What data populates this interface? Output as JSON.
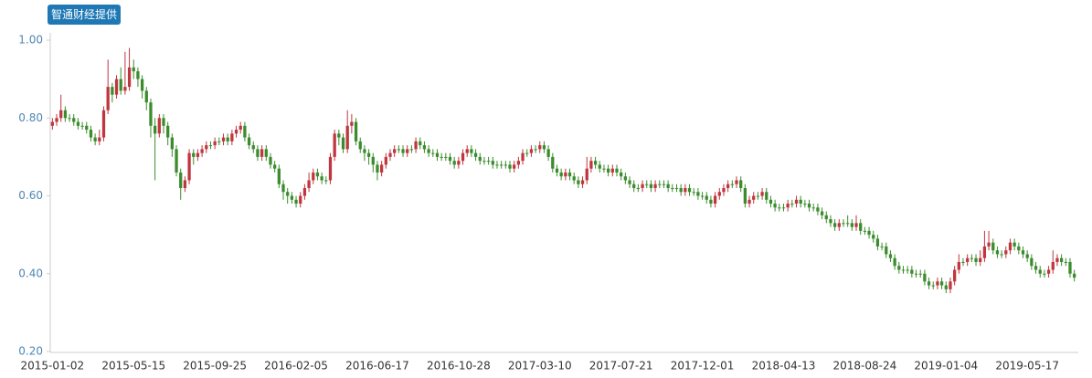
{
  "source_badge": "智通财经提供",
  "chart_data": {
    "type": "candlestick",
    "categories": [
      "2015-01-02",
      null,
      null,
      null,
      null,
      null,
      null,
      null,
      null,
      null,
      null,
      null,
      null,
      null,
      null,
      null,
      null,
      null,
      null,
      "2015-05-15",
      null,
      null,
      null,
      null,
      null,
      null,
      null,
      null,
      null,
      null,
      null,
      null,
      null,
      null,
      null,
      null,
      null,
      null,
      "2015-09-25",
      null,
      null,
      null,
      null,
      null,
      null,
      null,
      null,
      null,
      null,
      null,
      null,
      null,
      null,
      null,
      null,
      null,
      null,
      "2016-02-05",
      null,
      null,
      null,
      null,
      null,
      null,
      null,
      null,
      null,
      null,
      null,
      null,
      null,
      null,
      null,
      null,
      null,
      null,
      "2016-06-17",
      null,
      null,
      null,
      null,
      null,
      null,
      null,
      null,
      null,
      null,
      null,
      null,
      null,
      null,
      null,
      null,
      null,
      null,
      "2016-10-28",
      null,
      null,
      null,
      null,
      null,
      null,
      null,
      null,
      null,
      null,
      null,
      null,
      null,
      null,
      null,
      null,
      null,
      null,
      "2017-03-10",
      null,
      null,
      null,
      null,
      null,
      null,
      null,
      null,
      null,
      null,
      null,
      null,
      null,
      null,
      null,
      null,
      null,
      null,
      "2017-07-21",
      null,
      null,
      null,
      null,
      null,
      null,
      null,
      null,
      null,
      null,
      null,
      null,
      null,
      null,
      null,
      null,
      null,
      null,
      "2017-12-01",
      null,
      null,
      null,
      null,
      null,
      null,
      null,
      null,
      null,
      null,
      null,
      null,
      null,
      null,
      null,
      null,
      null,
      null,
      "2018-04-13",
      null,
      null,
      null,
      null,
      null,
      null,
      null,
      null,
      null,
      null,
      null,
      null,
      null,
      null,
      null,
      null,
      null,
      null,
      "2018-08-24",
      null,
      null,
      null,
      null,
      null,
      null,
      null,
      null,
      null,
      null,
      null,
      null,
      null,
      null,
      null,
      null,
      null,
      null,
      "2019-01-04",
      null,
      null,
      null,
      null,
      null,
      null,
      null,
      null,
      null,
      null,
      null,
      null,
      null,
      null,
      null,
      null,
      null,
      null,
      "2019-05-17",
      null,
      null,
      null,
      null,
      null,
      null,
      null,
      null,
      null,
      null,
      null
    ],
    "open": [
      0.78,
      0.79,
      0.8,
      0.82,
      0.8,
      0.8,
      0.79,
      0.78,
      0.78,
      0.77,
      0.75,
      0.74,
      0.75,
      0.82,
      0.88,
      0.86,
      0.9,
      0.87,
      0.88,
      0.93,
      0.92,
      0.9,
      0.87,
      0.84,
      0.78,
      0.76,
      0.8,
      0.78,
      0.75,
      0.72,
      0.66,
      0.62,
      0.64,
      0.71,
      0.7,
      0.71,
      0.72,
      0.73,
      0.73,
      0.74,
      0.74,
      0.75,
      0.74,
      0.76,
      0.77,
      0.78,
      0.75,
      0.73,
      0.72,
      0.7,
      0.72,
      0.7,
      0.68,
      0.67,
      0.63,
      0.61,
      0.6,
      0.59,
      0.58,
      0.6,
      0.62,
      0.64,
      0.66,
      0.65,
      0.64,
      0.64,
      0.7,
      0.76,
      0.75,
      0.72,
      0.78,
      0.79,
      0.74,
      0.72,
      0.71,
      0.7,
      0.68,
      0.66,
      0.68,
      0.7,
      0.71,
      0.72,
      0.72,
      0.71,
      0.72,
      0.72,
      0.74,
      0.73,
      0.72,
      0.71,
      0.71,
      0.7,
      0.7,
      0.7,
      0.69,
      0.68,
      0.69,
      0.71,
      0.72,
      0.71,
      0.7,
      0.69,
      0.69,
      0.69,
      0.68,
      0.68,
      0.68,
      0.68,
      0.67,
      0.68,
      0.69,
      0.71,
      0.71,
      0.72,
      0.72,
      0.73,
      0.72,
      0.7,
      0.67,
      0.66,
      0.65,
      0.66,
      0.65,
      0.64,
      0.63,
      0.64,
      0.67,
      0.69,
      0.68,
      0.67,
      0.67,
      0.66,
      0.67,
      0.66,
      0.65,
      0.64,
      0.63,
      0.62,
      0.62,
      0.63,
      0.63,
      0.62,
      0.63,
      0.63,
      0.63,
      0.62,
      0.62,
      0.62,
      0.61,
      0.62,
      0.61,
      0.61,
      0.6,
      0.6,
      0.59,
      0.58,
      0.6,
      0.61,
      0.62,
      0.63,
      0.63,
      0.64,
      0.62,
      0.58,
      0.59,
      0.6,
      0.6,
      0.61,
      0.59,
      0.58,
      0.57,
      0.57,
      0.57,
      0.58,
      0.58,
      0.59,
      0.58,
      0.58,
      0.57,
      0.57,
      0.56,
      0.55,
      0.54,
      0.53,
      0.52,
      0.53,
      0.53,
      0.53,
      0.52,
      0.53,
      0.51,
      0.51,
      0.5,
      0.49,
      0.47,
      0.47,
      0.45,
      0.44,
      0.42,
      0.41,
      0.41,
      0.41,
      0.4,
      0.4,
      0.4,
      0.38,
      0.37,
      0.37,
      0.38,
      0.37,
      0.36,
      0.38,
      0.41,
      0.43,
      0.43,
      0.44,
      0.44,
      0.43,
      0.44,
      0.47,
      0.48,
      0.46,
      0.45,
      0.45,
      0.46,
      0.48,
      0.47,
      0.46,
      0.45,
      0.44,
      0.42,
      0.41,
      0.4,
      0.4,
      0.41,
      0.43,
      0.44,
      0.43,
      0.43,
      0.4
    ],
    "high": [
      0.8,
      0.81,
      0.86,
      0.83,
      0.81,
      0.81,
      0.8,
      0.79,
      0.79,
      0.78,
      0.76,
      0.77,
      0.83,
      0.95,
      0.89,
      0.91,
      0.93,
      0.97,
      0.98,
      0.95,
      0.93,
      0.91,
      0.88,
      0.85,
      0.8,
      0.81,
      0.81,
      0.79,
      0.76,
      0.73,
      0.67,
      0.65,
      0.72,
      0.72,
      0.72,
      0.73,
      0.74,
      0.74,
      0.75,
      0.75,
      0.76,
      0.76,
      0.77,
      0.78,
      0.79,
      0.79,
      0.76,
      0.74,
      0.73,
      0.73,
      0.73,
      0.71,
      0.69,
      0.68,
      0.64,
      0.62,
      0.61,
      0.6,
      0.61,
      0.63,
      0.66,
      0.67,
      0.67,
      0.66,
      0.65,
      0.71,
      0.77,
      0.77,
      0.76,
      0.82,
      0.81,
      0.8,
      0.75,
      0.73,
      0.72,
      0.71,
      0.69,
      0.69,
      0.71,
      0.72,
      0.73,
      0.73,
      0.73,
      0.73,
      0.73,
      0.75,
      0.75,
      0.74,
      0.73,
      0.72,
      0.72,
      0.71,
      0.71,
      0.71,
      0.7,
      0.7,
      0.72,
      0.73,
      0.73,
      0.72,
      0.71,
      0.7,
      0.7,
      0.7,
      0.69,
      0.69,
      0.69,
      0.69,
      0.69,
      0.7,
      0.72,
      0.72,
      0.73,
      0.73,
      0.74,
      0.74,
      0.73,
      0.71,
      0.68,
      0.67,
      0.67,
      0.67,
      0.66,
      0.65,
      0.65,
      0.7,
      0.7,
      0.7,
      0.69,
      0.68,
      0.68,
      0.68,
      0.68,
      0.67,
      0.66,
      0.65,
      0.64,
      0.63,
      0.64,
      0.64,
      0.64,
      0.64,
      0.64,
      0.64,
      0.64,
      0.63,
      0.63,
      0.63,
      0.63,
      0.63,
      0.62,
      0.62,
      0.61,
      0.61,
      0.6,
      0.61,
      0.62,
      0.63,
      0.64,
      0.64,
      0.65,
      0.65,
      0.63,
      0.6,
      0.61,
      0.61,
      0.62,
      0.62,
      0.6,
      0.59,
      0.58,
      0.58,
      0.59,
      0.59,
      0.6,
      0.6,
      0.59,
      0.59,
      0.58,
      0.58,
      0.57,
      0.56,
      0.55,
      0.54,
      0.54,
      0.54,
      0.55,
      0.54,
      0.55,
      0.54,
      0.52,
      0.52,
      0.51,
      0.5,
      0.48,
      0.48,
      0.46,
      0.45,
      0.43,
      0.42,
      0.42,
      0.42,
      0.41,
      0.41,
      0.41,
      0.39,
      0.38,
      0.39,
      0.39,
      0.38,
      0.39,
      0.42,
      0.45,
      0.44,
      0.45,
      0.45,
      0.45,
      0.46,
      0.51,
      0.51,
      0.49,
      0.47,
      0.46,
      0.47,
      0.49,
      0.49,
      0.48,
      0.47,
      0.46,
      0.45,
      0.43,
      0.42,
      0.41,
      0.42,
      0.46,
      0.45,
      0.45,
      0.44,
      0.44,
      0.41
    ],
    "low": [
      0.77,
      0.78,
      0.79,
      0.79,
      0.79,
      0.78,
      0.77,
      0.77,
      0.76,
      0.74,
      0.73,
      0.73,
      0.74,
      0.81,
      0.84,
      0.85,
      0.86,
      0.86,
      0.87,
      0.9,
      0.88,
      0.85,
      0.82,
      0.75,
      0.64,
      0.75,
      0.76,
      0.73,
      0.7,
      0.65,
      0.59,
      0.61,
      0.63,
      0.68,
      0.69,
      0.7,
      0.71,
      0.72,
      0.72,
      0.73,
      0.73,
      0.73,
      0.73,
      0.75,
      0.76,
      0.74,
      0.72,
      0.71,
      0.69,
      0.69,
      0.69,
      0.67,
      0.66,
      0.62,
      0.59,
      0.58,
      0.58,
      0.57,
      0.57,
      0.59,
      0.61,
      0.63,
      0.64,
      0.63,
      0.63,
      0.63,
      0.69,
      0.73,
      0.71,
      0.71,
      0.76,
      0.73,
      0.71,
      0.69,
      0.68,
      0.66,
      0.64,
      0.65,
      0.67,
      0.69,
      0.7,
      0.71,
      0.7,
      0.7,
      0.71,
      0.71,
      0.72,
      0.71,
      0.7,
      0.7,
      0.69,
      0.69,
      0.69,
      0.68,
      0.67,
      0.67,
      0.68,
      0.7,
      0.7,
      0.69,
      0.68,
      0.68,
      0.68,
      0.67,
      0.67,
      0.67,
      0.67,
      0.66,
      0.66,
      0.67,
      0.68,
      0.7,
      0.7,
      0.71,
      0.71,
      0.71,
      0.69,
      0.66,
      0.65,
      0.64,
      0.64,
      0.64,
      0.63,
      0.62,
      0.62,
      0.63,
      0.66,
      0.67,
      0.66,
      0.66,
      0.65,
      0.65,
      0.65,
      0.64,
      0.63,
      0.62,
      0.61,
      0.61,
      0.61,
      0.62,
      0.61,
      0.61,
      0.62,
      0.62,
      0.61,
      0.61,
      0.61,
      0.6,
      0.6,
      0.6,
      0.6,
      0.59,
      0.59,
      0.58,
      0.57,
      0.57,
      0.59,
      0.6,
      0.61,
      0.62,
      0.62,
      0.61,
      0.57,
      0.57,
      0.58,
      0.59,
      0.59,
      0.58,
      0.57,
      0.56,
      0.56,
      0.56,
      0.56,
      0.57,
      0.57,
      0.57,
      0.57,
      0.56,
      0.56,
      0.55,
      0.54,
      0.53,
      0.52,
      0.51,
      0.51,
      0.52,
      0.52,
      0.51,
      0.51,
      0.5,
      0.5,
      0.49,
      0.48,
      0.46,
      0.46,
      0.44,
      0.43,
      0.41,
      0.4,
      0.4,
      0.4,
      0.39,
      0.39,
      0.39,
      0.37,
      0.36,
      0.36,
      0.36,
      0.36,
      0.35,
      0.35,
      0.37,
      0.4,
      0.42,
      0.42,
      0.43,
      0.42,
      0.42,
      0.43,
      0.46,
      0.45,
      0.44,
      0.44,
      0.44,
      0.45,
      0.46,
      0.45,
      0.44,
      0.43,
      0.41,
      0.4,
      0.39,
      0.39,
      0.39,
      0.4,
      0.42,
      0.42,
      0.42,
      0.39,
      0.38
    ],
    "close": [
      0.79,
      0.8,
      0.82,
      0.8,
      0.8,
      0.79,
      0.78,
      0.78,
      0.77,
      0.75,
      0.74,
      0.75,
      0.82,
      0.88,
      0.86,
      0.9,
      0.87,
      0.88,
      0.93,
      0.92,
      0.9,
      0.87,
      0.84,
      0.78,
      0.76,
      0.8,
      0.78,
      0.75,
      0.72,
      0.66,
      0.62,
      0.64,
      0.71,
      0.7,
      0.71,
      0.72,
      0.73,
      0.73,
      0.74,
      0.74,
      0.75,
      0.74,
      0.76,
      0.77,
      0.78,
      0.75,
      0.73,
      0.72,
      0.7,
      0.72,
      0.7,
      0.68,
      0.67,
      0.63,
      0.61,
      0.6,
      0.59,
      0.58,
      0.6,
      0.62,
      0.64,
      0.66,
      0.65,
      0.64,
      0.64,
      0.7,
      0.76,
      0.75,
      0.72,
      0.78,
      0.79,
      0.74,
      0.72,
      0.71,
      0.7,
      0.68,
      0.66,
      0.68,
      0.7,
      0.71,
      0.72,
      0.72,
      0.71,
      0.72,
      0.72,
      0.74,
      0.73,
      0.72,
      0.71,
      0.71,
      0.7,
      0.7,
      0.7,
      0.69,
      0.68,
      0.69,
      0.71,
      0.72,
      0.71,
      0.7,
      0.69,
      0.69,
      0.69,
      0.68,
      0.68,
      0.68,
      0.68,
      0.67,
      0.68,
      0.69,
      0.71,
      0.71,
      0.72,
      0.72,
      0.73,
      0.72,
      0.7,
      0.67,
      0.66,
      0.65,
      0.66,
      0.65,
      0.64,
      0.63,
      0.64,
      0.67,
      0.69,
      0.68,
      0.67,
      0.67,
      0.66,
      0.67,
      0.66,
      0.65,
      0.64,
      0.63,
      0.62,
      0.62,
      0.63,
      0.63,
      0.62,
      0.63,
      0.63,
      0.63,
      0.62,
      0.62,
      0.62,
      0.61,
      0.62,
      0.61,
      0.61,
      0.6,
      0.6,
      0.59,
      0.58,
      0.6,
      0.61,
      0.62,
      0.63,
      0.63,
      0.64,
      0.62,
      0.58,
      0.59,
      0.6,
      0.6,
      0.61,
      0.59,
      0.58,
      0.57,
      0.57,
      0.57,
      0.58,
      0.58,
      0.59,
      0.58,
      0.58,
      0.57,
      0.57,
      0.56,
      0.55,
      0.54,
      0.53,
      0.52,
      0.53,
      0.53,
      0.53,
      0.52,
      0.53,
      0.51,
      0.51,
      0.5,
      0.49,
      0.47,
      0.47,
      0.45,
      0.44,
      0.42,
      0.41,
      0.41,
      0.41,
      0.4,
      0.4,
      0.4,
      0.38,
      0.37,
      0.37,
      0.38,
      0.37,
      0.36,
      0.38,
      0.41,
      0.43,
      0.43,
      0.44,
      0.44,
      0.43,
      0.44,
      0.47,
      0.48,
      0.46,
      0.45,
      0.45,
      0.46,
      0.48,
      0.47,
      0.46,
      0.45,
      0.44,
      0.42,
      0.41,
      0.4,
      0.4,
      0.41,
      0.43,
      0.44,
      0.43,
      0.43,
      0.4,
      0.39
    ],
    "up_color": "#c0363f",
    "down_color": "#3a8c2c",
    "ylim": [
      0.2,
      1.0
    ],
    "yticks": [
      {
        "value": 0.2,
        "label": "0.20"
      },
      {
        "value": 0.4,
        "label": "0.40"
      },
      {
        "value": 0.6,
        "label": "0.60"
      },
      {
        "value": 0.8,
        "label": "0.80"
      },
      {
        "value": 1.0,
        "label": "1.00"
      }
    ],
    "grid": false
  }
}
